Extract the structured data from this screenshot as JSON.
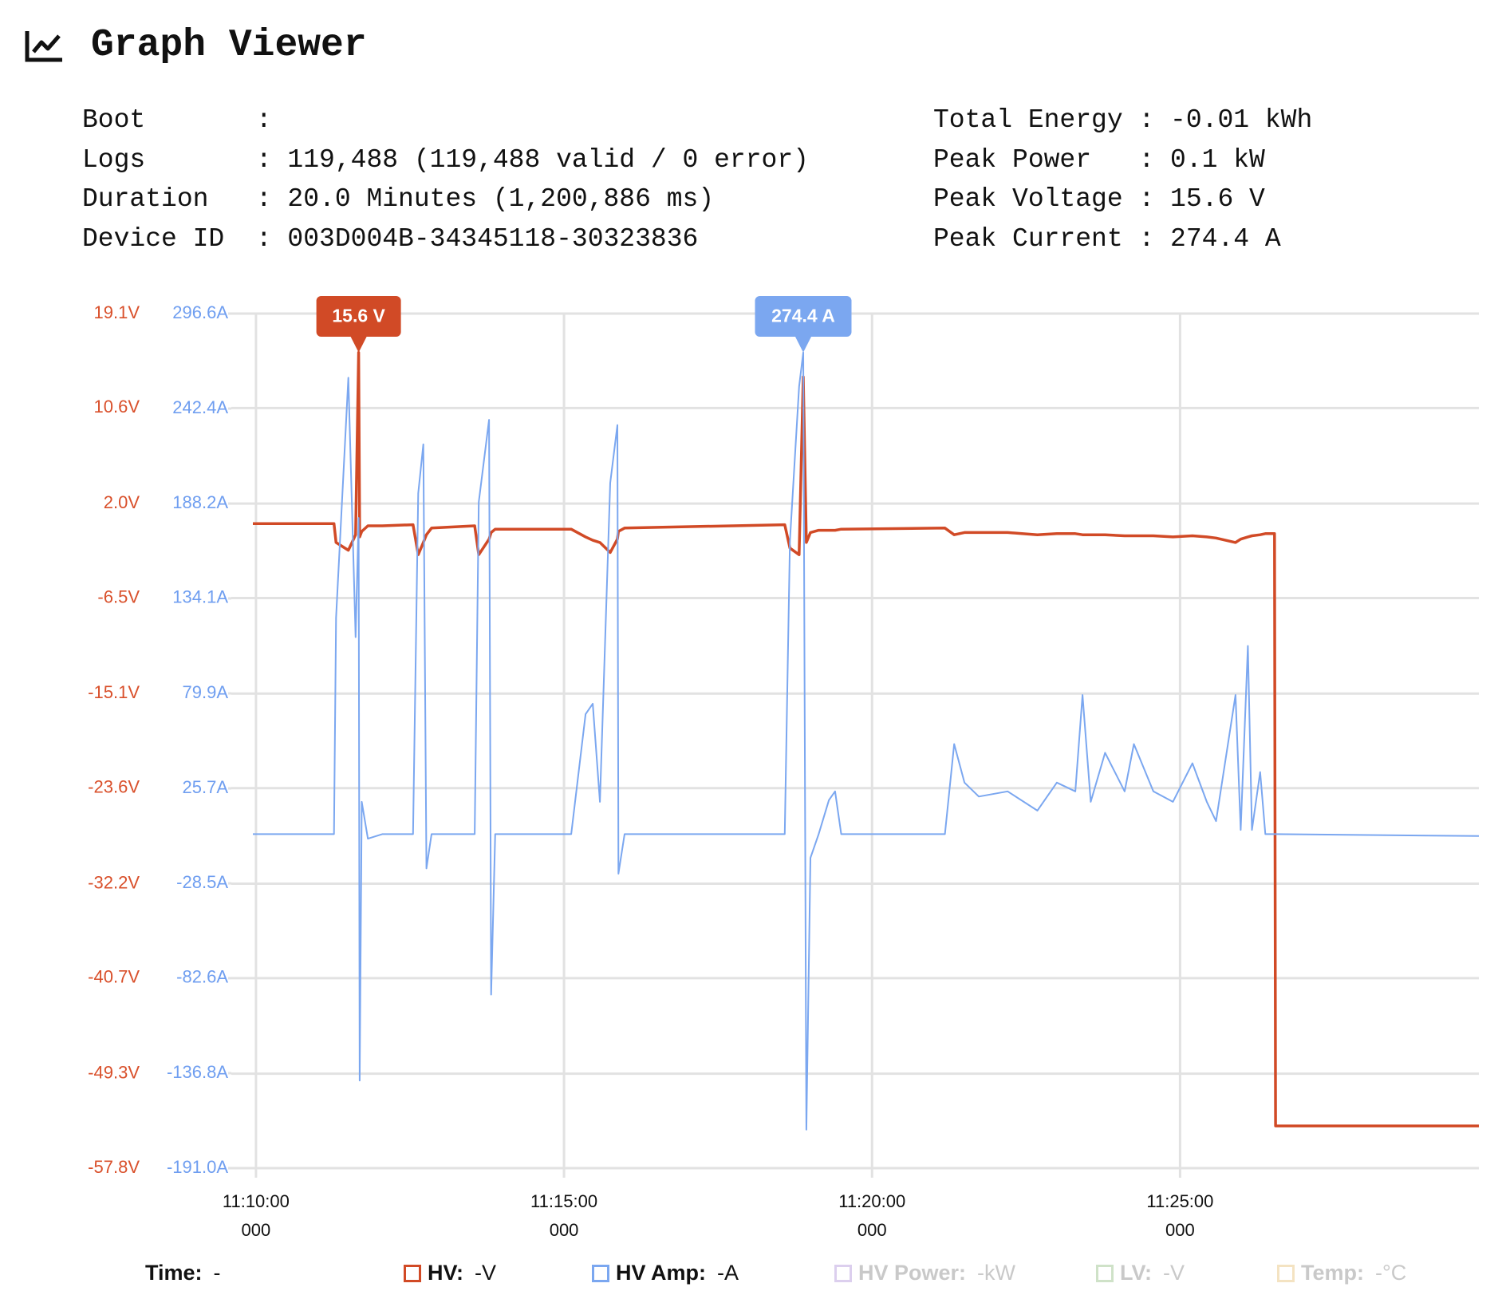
{
  "header": {
    "title": "Graph Viewer"
  },
  "stats": {
    "left": [
      {
        "label": "Boot",
        "value": ":"
      },
      {
        "label": "Logs",
        "value": ": 119,488 (119,488 valid / 0 error)"
      },
      {
        "label": "Duration",
        "value": ": 20.0 Minutes (1,200,886 ms)"
      },
      {
        "label": "Device ID",
        "value": ": 003D004B-34345118-30323836"
      }
    ],
    "right": [
      {
        "label": "Total Energy",
        "value": ": -0.01 kWh"
      },
      {
        "label": "Peak Power",
        "value": ": 0.1 kW"
      },
      {
        "label": "Peak Voltage",
        "value": ": 15.6 V"
      },
      {
        "label": "Peak Current",
        "value": ": 274.4 A"
      }
    ]
  },
  "chart_data": {
    "type": "line",
    "x": [
      "11:09:57",
      "11:11:16",
      "11:11:18",
      "11:11:30",
      "11:11:37",
      "11:11:40",
      "11:11:41",
      "11:11:43",
      "11:11:49",
      "11:12:03",
      "11:12:33",
      "11:12:38",
      "11:12:43",
      "11:12:46",
      "11:12:51",
      "11:13:33",
      "11:13:37",
      "11:13:47",
      "11:13:49",
      "11:13:53",
      "11:15:07",
      "11:15:21",
      "11:15:28",
      "11:15:35",
      "11:15:45",
      "11:15:52",
      "11:15:53",
      "11:15:59",
      "11:18:35",
      "11:18:40",
      "11:18:49",
      "11:18:53",
      "11:18:56",
      "11:19:00",
      "11:19:08",
      "11:19:18",
      "11:19:24",
      "11:19:30",
      "11:21:11",
      "11:21:20",
      "11:21:30",
      "11:21:44",
      "11:22:12",
      "11:22:41",
      "11:23:00",
      "11:23:18",
      "11:23:25",
      "11:23:33",
      "11:23:47",
      "11:24:06",
      "11:24:15",
      "11:24:34",
      "11:24:53",
      "11:25:12",
      "11:25:26",
      "11:25:35",
      "11:25:54",
      "11:25:59",
      "11:26:06",
      "11:26:10",
      "11:26:18",
      "11:26:23",
      "11:26:32",
      "11:26:33",
      "11:29:51"
    ],
    "series": [
      {
        "name": "HV:",
        "readout": "-V",
        "color": "#d14a26",
        "axis": "y",
        "values": [
          0.2,
          0.2,
          -1.5,
          -2.2,
          -0.8,
          15.6,
          -1.0,
          -0.5,
          0.0,
          0.0,
          0.1,
          -2.6,
          -1.5,
          -0.8,
          -0.2,
          0.0,
          -2.6,
          -1.2,
          -0.6,
          -0.3,
          -0.3,
          -1.0,
          -1.3,
          -1.5,
          -2.4,
          -1.2,
          -0.5,
          -0.2,
          0.1,
          -2.0,
          -2.6,
          13.4,
          -1.5,
          -0.6,
          -0.4,
          -0.4,
          -0.4,
          -0.3,
          -0.2,
          -0.8,
          -0.6,
          -0.6,
          -0.6,
          -0.8,
          -0.7,
          -0.7,
          -0.8,
          -0.8,
          -0.8,
          -0.9,
          -0.9,
          -0.9,
          -1.0,
          -0.9,
          -1.0,
          -1.1,
          -1.5,
          -1.2,
          -1.0,
          -0.9,
          -0.8,
          -0.7,
          -0.7,
          -54.0,
          -54.0
        ]
      },
      {
        "name": "HV Amp:",
        "readout": "-A",
        "color": "#7ba7f0",
        "axis": "y2",
        "values": [
          -0.4,
          -0.4,
          123,
          260,
          112,
          180,
          -141,
          18,
          -3,
          -0.4,
          -0.4,
          194,
          222,
          -20,
          -0.4,
          -0.4,
          189,
          236,
          -92,
          -0.4,
          -0.4,
          68,
          74,
          18,
          200,
          233,
          -23,
          -0.4,
          -0.4,
          167,
          255,
          274.4,
          -169,
          -14,
          -0.4,
          19,
          24,
          -0.4,
          -0.4,
          51,
          29,
          21,
          24,
          13,
          29,
          24,
          79,
          18,
          46,
          24,
          51,
          24,
          18,
          40,
          18,
          7,
          79,
          2,
          107,
          2,
          35,
          -0.4,
          -0.4,
          -0.4,
          -1.5
        ]
      }
    ],
    "inactive_legend": [
      {
        "name": "HV Power:",
        "readout": "-kW",
        "color": "#dccfee"
      },
      {
        "name": "LV:",
        "readout": "-V",
        "color": "#cfe2c8"
      },
      {
        "name": "Temp:",
        "readout": "-°C",
        "color": "#f4e3c2"
      }
    ],
    "time_legend": {
      "name": "Time:",
      "readout": "-"
    },
    "xlim": [
      "11:09:36",
      "11:29:51"
    ],
    "xticks": [
      {
        "value": "11:10:00.000",
        "label": "11:10:00",
        "sublabel": "000"
      },
      {
        "value": "11:15:00.000",
        "label": "11:15:00",
        "sublabel": "000"
      },
      {
        "value": "11:20:00.000",
        "label": "11:20:00",
        "sublabel": "000"
      },
      {
        "value": "11:25:00.000",
        "label": "11:25:00",
        "sublabel": "000"
      }
    ],
    "ylim": [
      -57.8,
      19.1
    ],
    "yticks": [
      {
        "value": 19.1,
        "label": "19.1V"
      },
      {
        "value": 10.6,
        "label": "10.6V"
      },
      {
        "value": 2.0,
        "label": "2.0V"
      },
      {
        "value": -6.5,
        "label": "-6.5V"
      },
      {
        "value": -15.1,
        "label": "-15.1V"
      },
      {
        "value": -23.6,
        "label": "-23.6V"
      },
      {
        "value": -32.2,
        "label": "-32.2V"
      },
      {
        "value": -40.7,
        "label": "-40.7V"
      },
      {
        "value": -49.3,
        "label": "-49.3V"
      },
      {
        "value": -57.8,
        "label": "-57.8V"
      }
    ],
    "y2lim": [
      -191.0,
      296.6
    ],
    "y2ticks": [
      {
        "value": 296.6,
        "label": "296.6A"
      },
      {
        "value": 242.4,
        "label": "242.4A"
      },
      {
        "value": 188.2,
        "label": "188.2A"
      },
      {
        "value": 134.1,
        "label": "134.1A"
      },
      {
        "value": 79.9,
        "label": "79.9A"
      },
      {
        "value": 25.7,
        "label": "25.7A"
      },
      {
        "value": -28.5,
        "label": "-28.5A"
      },
      {
        "value": -82.6,
        "label": "-82.6A"
      },
      {
        "value": -136.8,
        "label": "-136.8A"
      },
      {
        "value": -191.0,
        "label": "-191.0A"
      }
    ],
    "grid": true,
    "annotations": [
      {
        "text": "15.6 V",
        "x": "11:11:40",
        "y": 15.6,
        "axis": "y",
        "color": "#d14a26"
      },
      {
        "text": "274.4 A",
        "x": "11:18:53",
        "y": 274.4,
        "axis": "y2",
        "color": "#7ba7f0"
      }
    ]
  }
}
